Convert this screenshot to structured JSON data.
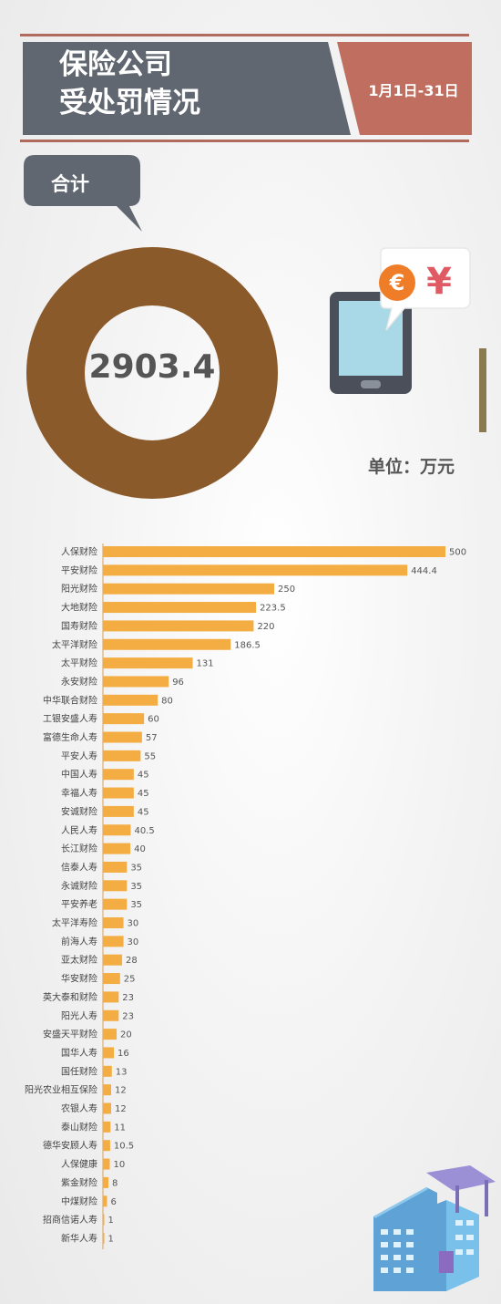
{
  "header": {
    "title_line1": "保险公司",
    "title_line2": "受处罚情况",
    "date_range": "1月1日-31日"
  },
  "summary": {
    "label": "合计",
    "total": "2903.4",
    "unit": "单位：万元"
  },
  "illustration": {
    "currency_symbols": [
      "€",
      "¥"
    ],
    "icons": [
      "tablet-icon",
      "currency-bubble-icon",
      "building-icon"
    ]
  },
  "colors": {
    "header_band": "#606770",
    "accent": "#c06e60",
    "donut": "#8b5a2b",
    "bar": "#f3ad42"
  },
  "chart_data": {
    "type": "bar",
    "orientation": "horizontal",
    "title": "",
    "xlabel": "",
    "ylabel": "",
    "xlim": [
      0,
      500
    ],
    "grid": false,
    "categories": [
      "人保财险",
      "平安财险",
      "阳光财险",
      "大地财险",
      "国寿财险",
      "太平洋财险",
      "太平财险",
      "永安财险",
      "中华联合财险",
      "工银安盛人寿",
      "富德生命人寿",
      "平安人寿",
      "中国人寿",
      "幸福人寿",
      "安诚财险",
      "人民人寿",
      "长江财险",
      "信泰人寿",
      "永诚财险",
      "平安养老",
      "太平洋寿险",
      "前海人寿",
      "亚太财险",
      "华安财险",
      "英大泰和财险",
      "阳光人寿",
      "安盛天平财险",
      "国华人寿",
      "国任财险",
      "阳光农业相互保险",
      "农银人寿",
      "泰山财险",
      "德华安顾人寿",
      "人保健康",
      "紫金财险",
      "中煤财险",
      "招商信诺人寿",
      "新华人寿"
    ],
    "values": [
      500,
      444.4,
      250,
      223.5,
      220,
      186.5,
      131,
      96,
      80,
      60,
      57,
      55,
      45,
      45,
      45,
      40.5,
      40,
      35,
      35,
      35,
      30,
      30,
      28,
      25,
      23,
      23,
      20,
      16,
      13,
      12,
      12,
      11,
      10.5,
      10,
      8,
      6,
      1,
      1
    ],
    "value_labels": [
      "500",
      "444.4",
      "250",
      "223.5",
      "220",
      "186.5",
      "131",
      "96",
      "80",
      "60",
      "57",
      "55",
      "45",
      "45",
      "45",
      "40.5",
      "40",
      "35",
      "35",
      "35",
      "30",
      "30",
      "28",
      "25",
      "23",
      "23",
      "20",
      "16",
      "13",
      "12",
      "12",
      "11",
      "10.5",
      "10",
      "8",
      "6",
      "1",
      "1"
    ]
  }
}
